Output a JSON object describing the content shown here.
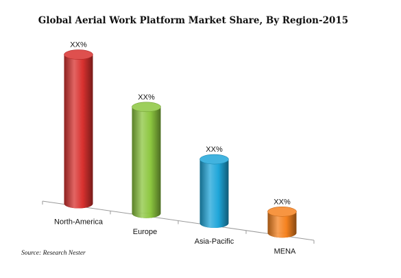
{
  "chart_data": {
    "type": "bar",
    "title": "Global Aerial Work Platform Market Share, By Region-2015",
    "categories": [
      "North-America",
      "Europe",
      "Asia-Pacific",
      "MENA"
    ],
    "values": [
      35,
      25,
      15,
      5
    ],
    "data_labels": [
      "XX%",
      "XX%",
      "XX%",
      "XX%"
    ],
    "colors": [
      "#d8312f",
      "#8cc63f",
      "#1fa6d9",
      "#f5821f"
    ],
    "ylim": [
      0,
      40
    ],
    "grid": false,
    "legend": "none",
    "xlabel": "",
    "ylabel": ""
  },
  "source": "Source: Research Nester"
}
